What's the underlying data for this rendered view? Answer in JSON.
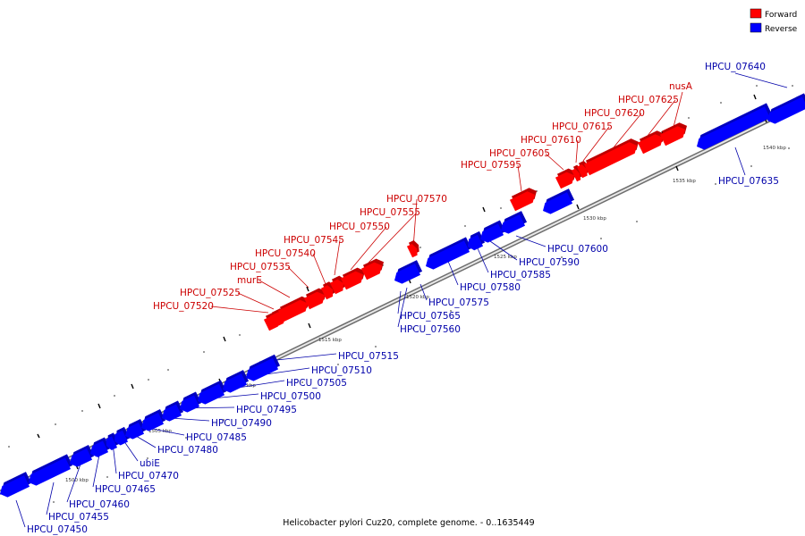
{
  "caption": "Helicobacter pylori Cuz20, complete genome. - 0..1635449",
  "legend": [
    {
      "label": "Forward",
      "color": "#ff0000"
    },
    {
      "label": "Reverse",
      "color": "#0000ff"
    }
  ],
  "colors": {
    "forward": "#ff0000",
    "reverse": "#0000ff",
    "forward_label": "#cc0000",
    "reverse_label": "#0000aa",
    "backbone": "#7f7f7f"
  },
  "ticks": [
    "1500 kbp",
    "1505 kbp",
    "1510 kbp",
    "1515 kbp",
    "1520 kbp",
    "1525 kbp",
    "1530 kbp",
    "1535 kbp",
    "1540 kbp"
  ],
  "forward_genes": [
    "HPCU_07520",
    "HPCU_07525",
    "murE",
    "HPCU_07535",
    "HPCU_07540",
    "HPCU_07545",
    "HPCU_07550",
    "HPCU_07555",
    "HPCU_07570",
    "HPCU_07595",
    "HPCU_07605",
    "HPCU_07610",
    "HPCU_07615",
    "HPCU_07620",
    "HPCU_07625",
    "nusA"
  ],
  "reverse_genes": [
    "HPCU_07450",
    "HPCU_07455",
    "HPCU_07460",
    "HPCU_07465",
    "HPCU_07470",
    "ubiE",
    "HPCU_07480",
    "HPCU_07485",
    "HPCU_07490",
    "HPCU_07495",
    "HPCU_07500",
    "HPCU_07505",
    "HPCU_07510",
    "HPCU_07515",
    "HPCU_07560",
    "HPCU_07565",
    "HPCU_07575",
    "HPCU_07580",
    "HPCU_07585",
    "HPCU_07590",
    "HPCU_07600",
    "HPCU_07635",
    "HPCU_07640"
  ]
}
